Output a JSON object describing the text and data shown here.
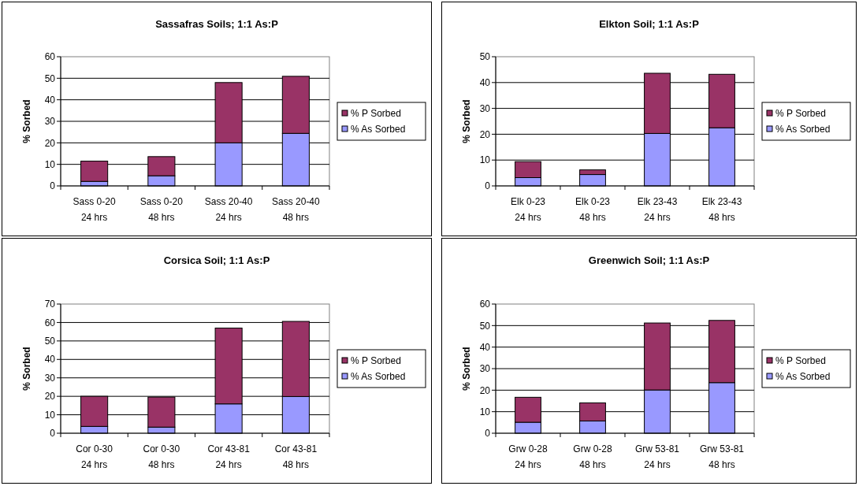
{
  "chart_data": [
    {
      "type": "bar",
      "title": "Sassafras Soils; 1:1 As:P",
      "ylabel": "% Sorbed",
      "categories": [
        "Sass 0-20\n24 hrs",
        "Sass 0-20\n48 hrs",
        "Sass 20-40\n24 hrs",
        "Sass 20-40\n48 hrs"
      ],
      "series": [
        {
          "name": "% As Sorbed",
          "color": "#9999ff",
          "values": [
            2.1,
            4.7,
            20.0,
            24.4
          ]
        },
        {
          "name": "% P Sorbed",
          "color": "#993366",
          "values": [
            9.4,
            8.9,
            28.0,
            26.5
          ]
        }
      ],
      "stacked": true,
      "ylim": [
        0,
        60
      ],
      "yticks": [
        0,
        10,
        20,
        30,
        40,
        50,
        60
      ],
      "grid": "y",
      "legend": "right"
    },
    {
      "type": "bar",
      "title": "Elkton Soil; 1:1 As:P",
      "ylabel": "% Sorbed",
      "categories": [
        "Elk 0-23\n24 hrs",
        "Elk 0-23\n48 hrs",
        "Elk 23-43\n24 hrs",
        "Elk 23-43\n48 hrs"
      ],
      "series": [
        {
          "name": "% As Sorbed",
          "color": "#9999ff",
          "values": [
            3.2,
            4.4,
            20.3,
            22.5
          ]
        },
        {
          "name": "% P Sorbed",
          "color": "#993366",
          "values": [
            6.2,
            1.8,
            23.3,
            20.7
          ]
        }
      ],
      "stacked": true,
      "ylim": [
        0,
        50
      ],
      "yticks": [
        0,
        10,
        20,
        30,
        40,
        50
      ],
      "grid": "y",
      "legend": "right"
    },
    {
      "type": "bar",
      "title": "Corsica Soil; 1:1 As:P",
      "ylabel": "% Sorbed",
      "categories": [
        "Cor 0-30\n24 hrs",
        "Cor 0-30\n48 hrs",
        "Cor 43-81\n24 hrs",
        "Cor 43-81\n48 hrs"
      ],
      "series": [
        {
          "name": "% As Sorbed",
          "color": "#9999ff",
          "values": [
            3.7,
            3.3,
            15.9,
            19.9
          ]
        },
        {
          "name": "% P Sorbed",
          "color": "#993366",
          "values": [
            16.3,
            16.3,
            41.1,
            40.7
          ]
        }
      ],
      "stacked": true,
      "ylim": [
        0,
        70
      ],
      "yticks": [
        0,
        10,
        20,
        30,
        40,
        50,
        60,
        70
      ],
      "grid": "y",
      "legend": "right"
    },
    {
      "type": "bar",
      "title": "Greenwich Soil; 1:1 As:P",
      "ylabel": "% Sorbed",
      "categories": [
        "Grw 0-28\n24 hrs",
        "Grw 0-28\n48 hrs",
        "Grw 53-81\n24 hrs",
        "Grw 53-81\n48 hrs"
      ],
      "series": [
        {
          "name": "% As Sorbed",
          "color": "#9999ff",
          "values": [
            5.1,
            5.7,
            20.1,
            23.5
          ]
        },
        {
          "name": "% P Sorbed",
          "color": "#993366",
          "values": [
            11.6,
            8.4,
            31.1,
            28.9
          ]
        }
      ],
      "stacked": true,
      "ylim": [
        0,
        60
      ],
      "yticks": [
        0,
        10,
        20,
        30,
        40,
        50,
        60
      ],
      "grid": "y",
      "legend": "right"
    }
  ]
}
